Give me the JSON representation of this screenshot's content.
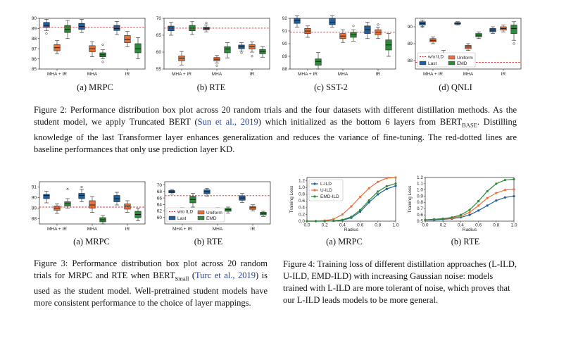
{
  "colors": {
    "last": "#1f5f9a",
    "uniform": "#e8733a",
    "emd": "#2c8a3a",
    "baseline": "#d62728",
    "box_line": "#222222"
  },
  "legend": {
    "baseline": "w/o ILD",
    "last": "Last",
    "uniform": "Uniform",
    "emd": "EMD"
  },
  "figure2": {
    "subcaptions": [
      "(a) MRPC",
      "(b) RTE",
      "(c) SST-2",
      "(d) QNLI"
    ],
    "caption": {
      "prefix": "Figure 2: Performance distribution box plot across 20 random trials and the four datasets with different distillation methods.  As the student model, we apply Truncated BERT (",
      "cite": "Sun et al., 2019",
      "middle": ") which initialized as the bottom 6 layers from BERT",
      "sub": "BASE",
      "suffix": ".  Distilling knowledge of the last Transformer layer enhances generalization and reduces the variance of fine-tuning. The red-dotted lines are baseline performances that only use prediction layer KD."
    }
  },
  "figure3": {
    "subcaptions": [
      "(a) MRPC",
      "(b) RTE"
    ],
    "caption": {
      "prefix": "Figure 3:  Performance distribution box plot across 20 random trials for MRPC and RTE when BERT",
      "sub": "Small",
      "mid": " (",
      "cite": "Turc et al., 2019",
      "suffix": ") is used as the student model.  Well-pretrained student models have more consistent performance to the choice of layer mappings."
    }
  },
  "figure4": {
    "subcaptions": [
      "(a) MRPC",
      "(b) RTE"
    ],
    "caption": "Figure 4:  Training loss of different distillation approaches (L-ILD, U-ILD, EMD-ILD) with increasing Gaussian noise: models trained with L-ILD are more tolerant of noise, which proves that our L-ILD leads models to be more general."
  },
  "chart_data": [
    {
      "type": "box",
      "id": "fig2a",
      "xticks": [
        "MHA + IR",
        "MHA",
        "IR"
      ],
      "ylim": [
        85,
        90
      ],
      "yticks": [
        85,
        86,
        87,
        88,
        89,
        90
      ],
      "baseline": 89.1,
      "groups": [
        {
          "boxes": [
            {
              "series": "Last",
              "med": 89.3,
              "q1": 89.1,
              "q3": 89.6,
              "lo": 88.8,
              "hi": 89.9,
              "out": [
                88.5
              ]
            },
            {
              "series": "Uniform",
              "med": 87.1,
              "q1": 86.8,
              "q3": 87.4,
              "lo": 86.5,
              "hi": 87.8,
              "out": []
            },
            {
              "series": "EMD",
              "med": 88.9,
              "q1": 88.6,
              "q3": 89.3,
              "lo": 88.0,
              "hi": 89.8,
              "out": []
            }
          ]
        },
        {
          "boxes": [
            {
              "series": "Last",
              "med": 89.2,
              "q1": 88.9,
              "q3": 89.5,
              "lo": 88.6,
              "hi": 89.9,
              "out": []
            },
            {
              "series": "Uniform",
              "med": 87.0,
              "q1": 86.7,
              "q3": 87.3,
              "lo": 86.2,
              "hi": 87.7,
              "out": []
            },
            {
              "series": "EMD",
              "med": 86.4,
              "q1": 86.2,
              "q3": 86.6,
              "lo": 86.0,
              "hi": 86.9,
              "out": [
                87.4,
                85.7
              ]
            }
          ]
        },
        {
          "boxes": [
            {
              "series": "Last",
              "med": 89.0,
              "q1": 88.8,
              "q3": 89.3,
              "lo": 88.4,
              "hi": 89.7,
              "out": []
            },
            {
              "series": "Uniform",
              "med": 87.9,
              "q1": 87.6,
              "q3": 88.3,
              "lo": 87.2,
              "hi": 88.7,
              "out": []
            },
            {
              "series": "EMD",
              "med": 87.0,
              "q1": 86.6,
              "q3": 87.5,
              "lo": 86.0,
              "hi": 88.1,
              "out": []
            }
          ]
        }
      ]
    },
    {
      "type": "box",
      "id": "fig2b",
      "xticks": [
        "MHA + IR",
        "MHA",
        "IR"
      ],
      "ylim": [
        55,
        70
      ],
      "yticks": [
        55,
        60,
        65,
        70
      ],
      "baseline": 67.1,
      "groups": [
        {
          "boxes": [
            {
              "series": "Last",
              "med": 67.1,
              "q1": 66.3,
              "q3": 67.7,
              "lo": 65.0,
              "hi": 68.8,
              "out": []
            },
            {
              "series": "Uniform",
              "med": 58.2,
              "q1": 57.4,
              "q3": 58.9,
              "lo": 56.2,
              "hi": 60.2,
              "out": []
            },
            {
              "series": "EMD",
              "med": 67.1,
              "q1": 66.3,
              "q3": 67.9,
              "lo": 65.2,
              "hi": 69.0,
              "out": []
            }
          ]
        },
        {
          "boxes": [
            {
              "series": "Last",
              "med": 67.0,
              "q1": 66.6,
              "q3": 67.4,
              "lo": 66.0,
              "hi": 68.0,
              "out": [
                68.6
              ]
            },
            {
              "series": "Uniform",
              "med": 57.9,
              "q1": 57.4,
              "q3": 58.4,
              "lo": 56.8,
              "hi": 59.0,
              "out": [
                56.0
              ]
            },
            {
              "series": "EMD",
              "med": 60.9,
              "q1": 59.8,
              "q3": 61.6,
              "lo": 58.3,
              "hi": 62.8,
              "out": []
            }
          ]
        },
        {
          "boxes": [
            {
              "series": "Last",
              "med": 61.6,
              "q1": 61.0,
              "q3": 62.1,
              "lo": 60.3,
              "hi": 62.8,
              "out": [
                59.8
              ]
            },
            {
              "series": "Uniform",
              "med": 61.6,
              "q1": 60.9,
              "q3": 62.2,
              "lo": 60.0,
              "hi": 63.0,
              "out": [
                58.8
              ]
            },
            {
              "series": "EMD",
              "med": 60.2,
              "q1": 59.5,
              "q3": 60.8,
              "lo": 58.5,
              "hi": 61.6,
              "out": []
            }
          ]
        }
      ]
    },
    {
      "type": "box",
      "id": "fig2c",
      "xticks": [
        "MHA + IR",
        "MHA",
        "IR"
      ],
      "ylim": [
        88,
        92
      ],
      "yticks": [
        88,
        89,
        90,
        91,
        92
      ],
      "baseline": 90.9,
      "groups": [
        {
          "boxes": [
            {
              "series": "Last",
              "med": 91.8,
              "q1": 91.6,
              "q3": 92.0,
              "lo": 91.3,
              "hi": 92.2,
              "out": []
            },
            {
              "series": "Uniform",
              "med": 91.0,
              "q1": 90.8,
              "q3": 91.2,
              "lo": 90.5,
              "hi": 91.4,
              "out": []
            },
            {
              "series": "EMD",
              "med": 88.6,
              "q1": 88.3,
              "q3": 88.8,
              "lo": 88.0,
              "hi": 89.3,
              "out": []
            }
          ]
        },
        {
          "boxes": [
            {
              "series": "Last",
              "med": 91.7,
              "q1": 91.5,
              "q3": 92.0,
              "lo": 91.3,
              "hi": 92.2,
              "out": []
            },
            {
              "series": "Uniform",
              "med": 90.6,
              "q1": 90.4,
              "q3": 90.8,
              "lo": 90.1,
              "hi": 91.1,
              "out": []
            },
            {
              "series": "EMD",
              "med": 90.7,
              "q1": 90.5,
              "q3": 90.9,
              "lo": 90.2,
              "hi": 91.1,
              "out": [
                91.4
              ]
            }
          ]
        },
        {
          "boxes": [
            {
              "series": "Last",
              "med": 91.1,
              "q1": 90.8,
              "q3": 91.4,
              "lo": 90.4,
              "hi": 91.7,
              "out": []
            },
            {
              "series": "Uniform",
              "med": 90.9,
              "q1": 90.7,
              "q3": 91.1,
              "lo": 90.4,
              "hi": 91.3,
              "out": [
                91.5
              ]
            },
            {
              "series": "EMD",
              "med": 89.9,
              "q1": 89.5,
              "q3": 90.3,
              "lo": 89.0,
              "hi": 90.8,
              "out": []
            }
          ]
        }
      ]
    },
    {
      "type": "box",
      "id": "fig2d",
      "xticks": [
        "MHA + IR",
        "MHA",
        "IR"
      ],
      "ylim": [
        87.5,
        90.5
      ],
      "yticks": [
        88,
        89,
        90
      ],
      "baseline": 87.9,
      "legend": "lower-left",
      "groups": [
        {
          "boxes": [
            {
              "series": "Last",
              "med": 90.2,
              "q1": 90.1,
              "q3": 90.3,
              "lo": 90.0,
              "hi": 90.4,
              "out": [
                90.0
              ]
            },
            {
              "series": "Uniform",
              "med": 89.2,
              "q1": 89.1,
              "q3": 89.3,
              "lo": 89.0,
              "hi": 89.4,
              "out": []
            },
            {
              "series": "EMD",
              "med": 88.3,
              "q1": 88.1,
              "q3": 88.4,
              "lo": 87.9,
              "hi": 88.6,
              "out": []
            }
          ]
        },
        {
          "boxes": [
            {
              "series": "Last",
              "med": 90.2,
              "q1": 90.15,
              "q3": 90.25,
              "lo": 90.1,
              "hi": 90.3,
              "out": []
            },
            {
              "series": "Uniform",
              "med": 88.8,
              "q1": 88.7,
              "q3": 88.9,
              "lo": 88.6,
              "hi": 89.0,
              "out": []
            },
            {
              "series": "EMD",
              "med": 89.5,
              "q1": 89.4,
              "q3": 89.6,
              "lo": 89.3,
              "hi": 89.7,
              "out": []
            }
          ]
        },
        {
          "boxes": [
            {
              "series": "Last",
              "med": 89.8,
              "q1": 89.7,
              "q3": 89.9,
              "lo": 89.6,
              "hi": 90.0,
              "out": []
            },
            {
              "series": "Uniform",
              "med": 89.9,
              "q1": 89.8,
              "q3": 90.0,
              "lo": 89.7,
              "hi": 90.1,
              "out": []
            },
            {
              "series": "EMD",
              "med": 89.9,
              "q1": 89.6,
              "q3": 90.1,
              "lo": 89.2,
              "hi": 90.3,
              "out": [
                89.0
              ]
            }
          ]
        }
      ]
    },
    {
      "type": "box",
      "id": "fig3a",
      "xticks": [
        "MHA + IR",
        "MHA",
        "IR"
      ],
      "ylim": [
        87.5,
        91.5
      ],
      "yticks": [
        88,
        89,
        90,
        91
      ],
      "baseline": 89.1,
      "groups": [
        {
          "boxes": [
            {
              "series": "Last",
              "med": 90.2,
              "q1": 89.9,
              "q3": 90.3,
              "lo": 89.5,
              "hi": 90.6,
              "out": []
            },
            {
              "series": "Uniform",
              "med": 89.0,
              "q1": 88.8,
              "q3": 89.2,
              "lo": 88.5,
              "hi": 89.4,
              "out": []
            },
            {
              "series": "EMD",
              "med": 89.4,
              "q1": 89.2,
              "q3": 89.6,
              "lo": 89.0,
              "hi": 89.9,
              "out": [
                90.8
              ]
            }
          ]
        },
        {
          "boxes": [
            {
              "series": "Last",
              "med": 90.2,
              "q1": 89.9,
              "q3": 90.4,
              "lo": 89.6,
              "hi": 90.8,
              "out": [
                91.0
              ]
            },
            {
              "series": "Uniform",
              "med": 89.3,
              "q1": 89.0,
              "q3": 89.7,
              "lo": 88.6,
              "hi": 90.1,
              "out": []
            },
            {
              "series": "EMD",
              "med": 87.9,
              "q1": 87.7,
              "q3": 88.1,
              "lo": 87.5,
              "hi": 88.3,
              "out": []
            }
          ]
        },
        {
          "boxes": [
            {
              "series": "Last",
              "med": 89.9,
              "q1": 89.6,
              "q3": 90.2,
              "lo": 89.3,
              "hi": 90.5,
              "out": []
            },
            {
              "series": "Uniform",
              "med": 89.2,
              "q1": 88.9,
              "q3": 89.4,
              "lo": 88.6,
              "hi": 89.7,
              "out": []
            },
            {
              "series": "EMD",
              "med": 88.4,
              "q1": 88.1,
              "q3": 88.7,
              "lo": 87.8,
              "hi": 89.0,
              "out": []
            }
          ]
        }
      ]
    },
    {
      "type": "box",
      "id": "fig3b",
      "xticks": [
        "MHA + IR",
        "MHA",
        "IR"
      ],
      "ylim": [
        58,
        71
      ],
      "yticks": [
        60,
        62,
        64,
        66,
        68,
        70
      ],
      "baseline": 66.7,
      "legend": "lower-left",
      "groups": [
        {
          "boxes": [
            {
              "series": "Last",
              "med": 68.0,
              "q1": 67.6,
              "q3": 68.3,
              "lo": 67.2,
              "hi": 68.6,
              "out": []
            },
            {
              "series": "Uniform",
              "med": 61.5,
              "q1": 60.8,
              "q3": 62.2,
              "lo": 60.0,
              "hi": 63.0,
              "out": []
            },
            {
              "series": "EMD",
              "med": 65.5,
              "q1": 64.5,
              "q3": 66.5,
              "lo": 63.2,
              "hi": 67.4,
              "out": []
            }
          ]
        },
        {
          "boxes": [
            {
              "series": "Last",
              "med": 68.0,
              "q1": 67.3,
              "q3": 68.5,
              "lo": 66.6,
              "hi": 69.0,
              "out": []
            },
            {
              "series": "Uniform",
              "med": 62.2,
              "q1": 61.7,
              "q3": 62.6,
              "lo": 61.2,
              "hi": 63.0,
              "out": []
            },
            {
              "series": "EMD",
              "med": 62.4,
              "q1": 61.9,
              "q3": 62.8,
              "lo": 61.3,
              "hi": 63.2,
              "out": []
            }
          ]
        },
        {
          "boxes": [
            {
              "series": "Last",
              "med": 66.0,
              "q1": 65.3,
              "q3": 66.7,
              "lo": 64.6,
              "hi": 67.4,
              "out": []
            },
            {
              "series": "Uniform",
              "med": 63.0,
              "q1": 62.5,
              "q3": 63.4,
              "lo": 62.0,
              "hi": 63.9,
              "out": []
            },
            {
              "series": "EMD",
              "med": 61.2,
              "q1": 60.8,
              "q3": 61.6,
              "lo": 60.3,
              "hi": 61.9,
              "out": []
            }
          ]
        }
      ]
    },
    {
      "type": "line",
      "id": "fig4a",
      "xlabel": "Radius",
      "ylabel": "Training Loss",
      "xlim": [
        0,
        1
      ],
      "ylim": [
        0,
        1.3
      ],
      "xticks": [
        0.0,
        0.2,
        0.4,
        0.6,
        0.8,
        1.0
      ],
      "yticks": [
        0.0,
        0.2,
        0.4,
        0.6,
        0.8,
        1.0,
        1.2
      ],
      "legend": "upper-left",
      "x": [
        0.0,
        0.1,
        0.2,
        0.3,
        0.4,
        0.5,
        0.6,
        0.7,
        0.8,
        0.9,
        1.0
      ],
      "series": [
        {
          "name": "L-ILD",
          "color": "#1f5f9a",
          "values": [
            0.0,
            0.0,
            0.0,
            0.01,
            0.03,
            0.1,
            0.28,
            0.56,
            0.8,
            0.96,
            1.05
          ]
        },
        {
          "name": "U-ILD",
          "color": "#e8733a",
          "values": [
            0.0,
            0.0,
            0.02,
            0.06,
            0.2,
            0.44,
            0.72,
            0.98,
            1.17,
            1.28,
            1.3
          ]
        },
        {
          "name": "EMD-ILD",
          "color": "#2c8a3a",
          "values": [
            0.0,
            0.0,
            0.0,
            0.01,
            0.04,
            0.13,
            0.33,
            0.62,
            0.88,
            1.04,
            1.12
          ]
        }
      ]
    },
    {
      "type": "line",
      "id": "fig4b",
      "xlabel": "Radius",
      "ylabel": "Training Loss",
      "xlim": [
        0,
        1
      ],
      "ylim": [
        0.5,
        1.2
      ],
      "xticks": [
        0.0,
        0.2,
        0.4,
        0.6,
        0.8,
        1.0
      ],
      "yticks": [
        0.5,
        0.6,
        0.7,
        0.8,
        0.9,
        1.0,
        1.1,
        1.2
      ],
      "x": [
        0.0,
        0.1,
        0.2,
        0.3,
        0.4,
        0.5,
        0.6,
        0.7,
        0.8,
        0.9,
        1.0
      ],
      "series": [
        {
          "name": "L-ILD",
          "color": "#1f5f9a",
          "values": [
            0.52,
            0.52,
            0.53,
            0.54,
            0.56,
            0.6,
            0.67,
            0.75,
            0.83,
            0.88,
            0.9
          ]
        },
        {
          "name": "U-ILD",
          "color": "#e8733a",
          "values": [
            0.52,
            0.53,
            0.54,
            0.55,
            0.58,
            0.64,
            0.75,
            0.87,
            0.95,
            1.0,
            1.01
          ]
        },
        {
          "name": "EMD-ILD",
          "color": "#2c8a3a",
          "values": [
            0.52,
            0.53,
            0.54,
            0.56,
            0.6,
            0.68,
            0.82,
            0.98,
            1.1,
            1.16,
            1.17
          ]
        }
      ]
    }
  ]
}
